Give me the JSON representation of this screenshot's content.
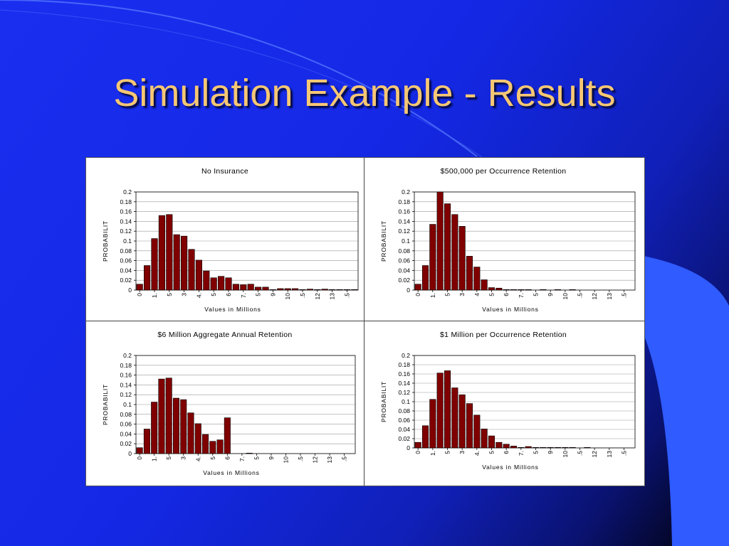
{
  "slide": {
    "title": "Simulation Example - Results",
    "colors": {
      "title": "#f6c774",
      "background": "#1a2ef0",
      "bar": "#800000",
      "accent": "#2f5bff"
    }
  },
  "chart_data": [
    {
      "type": "bar",
      "title": "No Insurance",
      "xlabel": "Values in Millions",
      "ylabel": "PROBABILIT",
      "ylim": [
        0,
        0.2
      ],
      "yticks": [
        "0",
        "0.02",
        "0.04",
        "0.06",
        "0.08",
        "0.1",
        "0.12",
        "0.14",
        "0.16",
        "0.18",
        "0.2"
      ],
      "xticks": [
        "0",
        "1.",
        "5",
        "3",
        "4.",
        "5",
        "6",
        "7.",
        "5",
        "9",
        "10",
        ".5",
        "12",
        "13",
        ".5"
      ],
      "grid": true,
      "values": [
        0.012,
        0.05,
        0.105,
        0.152,
        0.154,
        0.113,
        0.11,
        0.083,
        0.061,
        0.039,
        0.025,
        0.028,
        0.025,
        0.012,
        0.011,
        0.012,
        0.006,
        0.006,
        0.001,
        0.003,
        0.003,
        0.003,
        0.001,
        0.002,
        0.001,
        0.002,
        0.001,
        0.001,
        0.001,
        0.001
      ]
    },
    {
      "type": "bar",
      "title": "$500,000 per Occurrence Retention",
      "xlabel": "Values in Millions",
      "ylabel": "PROBABILIT",
      "ylim": [
        0,
        0.2
      ],
      "yticks": [
        "0",
        "0.02",
        "0.04",
        "0.06",
        "0.08",
        "0.1",
        "0.12",
        "0.14",
        "0.16",
        "0.18",
        "0.2"
      ],
      "xticks": [
        "0",
        "1.",
        "5",
        "3",
        "4",
        "5",
        "6",
        "7.",
        "5",
        "9",
        "10",
        ".5",
        "12",
        "13",
        ".5"
      ],
      "grid": true,
      "values": [
        0.012,
        0.05,
        0.134,
        0.2,
        0.176,
        0.154,
        0.13,
        0.069,
        0.047,
        0.021,
        0.005,
        0.004,
        0.001,
        0.001,
        0.001,
        0.001,
        0.0,
        0.001,
        0.0,
        0.001,
        0.0,
        0.001,
        0.0,
        0.0,
        0.0,
        0.0,
        0.0,
        0.0,
        0.0,
        0.0
      ]
    },
    {
      "type": "bar",
      "title": "$6 Million Aggregate Annual Retention",
      "xlabel": "Values in Millions",
      "ylabel": "PROBABILIT",
      "ylim": [
        0,
        0.2
      ],
      "yticks": [
        "0",
        "0.02",
        "0.04",
        "0.06",
        "0.08",
        "0.1",
        "0.12",
        "0.14",
        "0.16",
        "0.18",
        "0.2"
      ],
      "xticks": [
        "0",
        "1.",
        "5",
        "3",
        "4.",
        "5",
        "6",
        "7.",
        "5",
        "9",
        "10",
        ".5",
        "12",
        "13",
        ".5"
      ],
      "grid": true,
      "values": [
        0.012,
        0.05,
        0.105,
        0.152,
        0.154,
        0.113,
        0.11,
        0.083,
        0.061,
        0.039,
        0.025,
        0.028,
        0.073,
        0.0,
        0.0,
        0.001,
        0.0,
        0.0,
        0.0,
        0.0,
        0.0,
        0.0,
        0.0,
        0.0,
        0.0,
        0.0,
        0.0,
        0.0,
        0.0,
        0.0
      ]
    },
    {
      "type": "bar",
      "title": "$1 Million per Occurrence Retention",
      "xlabel": "Values in Millions",
      "ylabel": "PROBABILIT",
      "ylim": [
        0,
        0.2
      ],
      "yticks": [
        "0",
        "0.02",
        "0.04",
        "0.06",
        "0.08",
        "0.1",
        "0.12",
        "0.14",
        "0.16",
        "0.18",
        "0.2"
      ],
      "xticks": [
        "0",
        "1.",
        "5",
        "3",
        "4.",
        "5",
        "6",
        "7.",
        "5",
        "9",
        "10",
        ".5",
        "12",
        "13",
        ".5"
      ],
      "grid": true,
      "values": [
        0.012,
        0.048,
        0.105,
        0.162,
        0.167,
        0.13,
        0.115,
        0.096,
        0.071,
        0.041,
        0.026,
        0.012,
        0.008,
        0.004,
        0.001,
        0.003,
        0.001,
        0.001,
        0.001,
        0.001,
        0.001,
        0.001,
        0.0,
        0.001,
        0.0,
        0.0,
        0.0,
        0.0,
        0.0,
        0.0
      ]
    }
  ]
}
